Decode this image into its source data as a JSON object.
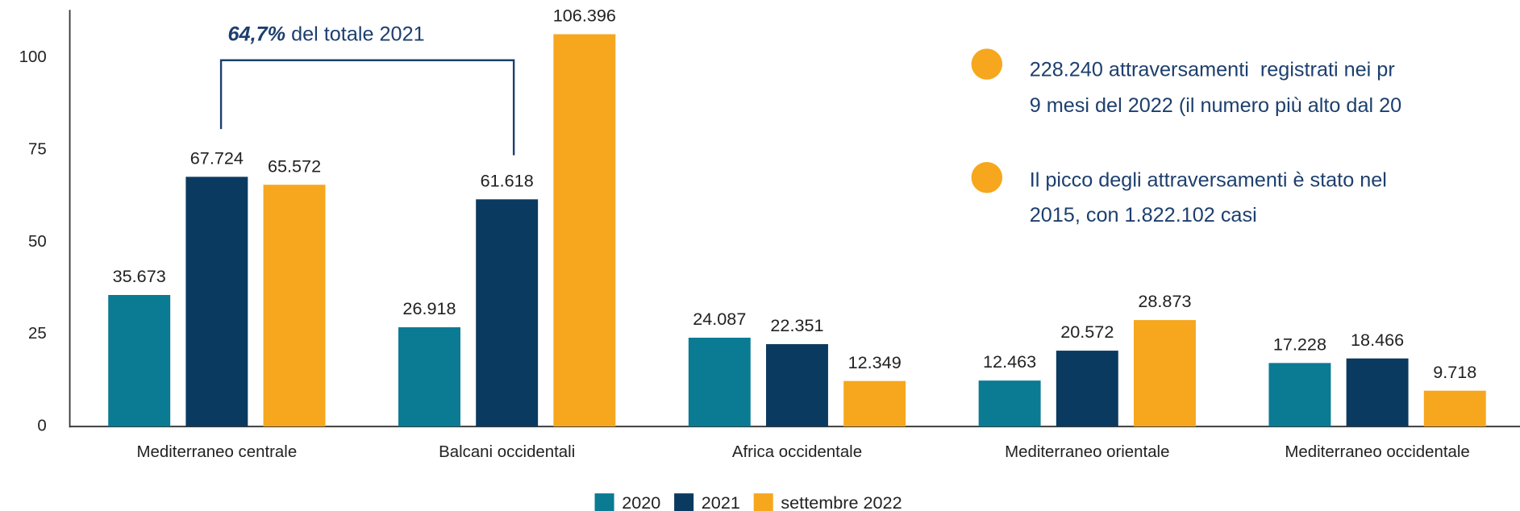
{
  "chart_data": {
    "type": "bar",
    "categories": [
      "Mediterraneo centrale",
      "Balcani occidentali",
      "Africa occidentale",
      "Mediterraneo orientale",
      "Mediterraneo occidentale"
    ],
    "series": [
      {
        "name": "2020",
        "color": "#0a7b93",
        "values": [
          35.673,
          26.918,
          24.087,
          12.463,
          17.228
        ],
        "value_labels": [
          "35.673",
          "26.918",
          "24.087",
          "12.463",
          "17.228"
        ]
      },
      {
        "name": "2021",
        "color": "#0b3a60",
        "values": [
          67.724,
          61.618,
          22.351,
          20.572,
          18.466
        ],
        "value_labels": [
          "67.724",
          "61.618",
          "22.351",
          "20.572",
          "18.466"
        ]
      },
      {
        "name": "settembre 2022",
        "color": "#f6a71e",
        "values": [
          65.572,
          106.396,
          12.349,
          28.873,
          9.718
        ],
        "value_labels": [
          "65.572",
          "106.396",
          "12.349",
          "28.873",
          "9.718"
        ]
      }
    ],
    "ylim": [
      0,
      113
    ],
    "yticks": [
      0,
      25,
      50,
      75,
      100
    ],
    "grid": false,
    "legend": "bottom",
    "annotation": {
      "highlight": "64,7%",
      "text": " del totale 2021"
    },
    "notes": [
      [
        "228.240 attraversamenti  registrati nei pr",
        "9 mesi del 2022 (il numero più alto dal 20"
      ],
      [
        "Il picco degli attraversamenti è stato nel",
        "2015, con 1.822.102 casi"
      ]
    ]
  }
}
